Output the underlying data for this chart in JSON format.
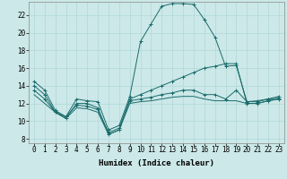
{
  "xlabel": "Humidex (Indice chaleur)",
  "ylabel": "",
  "background_color": "#cce8e8",
  "line_color": "#1a6b6b",
  "xlim": [
    -0.5,
    23.5
  ],
  "ylim": [
    7.5,
    23.5
  ],
  "yticks": [
    8,
    10,
    12,
    14,
    16,
    18,
    20,
    22
  ],
  "xticks": [
    0,
    1,
    2,
    3,
    4,
    5,
    6,
    7,
    8,
    9,
    10,
    11,
    12,
    13,
    14,
    15,
    16,
    17,
    18,
    19,
    20,
    21,
    22,
    23
  ],
  "lines": [
    {
      "x": [
        0,
        1,
        2,
        3,
        4,
        5,
        6,
        7,
        8,
        9,
        10,
        11,
        12,
        13,
        14,
        15,
        16,
        17,
        18,
        19,
        20,
        21,
        22,
        23
      ],
      "y": [
        14.5,
        13.5,
        11.2,
        10.5,
        12.5,
        12.3,
        12.2,
        9.0,
        9.5,
        12.8,
        19.0,
        21.0,
        23.0,
        23.3,
        23.3,
        23.2,
        21.5,
        19.5,
        16.2,
        16.3,
        12.2,
        12.3,
        12.5,
        12.6
      ],
      "marker": "+"
    },
    {
      "x": [
        0,
        1,
        2,
        3,
        4,
        5,
        6,
        7,
        8,
        9,
        10,
        11,
        12,
        13,
        14,
        15,
        16,
        17,
        18,
        19,
        20,
        21,
        22,
        23
      ],
      "y": [
        14.0,
        13.0,
        11.0,
        10.3,
        12.0,
        12.0,
        11.5,
        8.5,
        9.0,
        12.5,
        13.0,
        13.5,
        14.0,
        14.5,
        15.0,
        15.5,
        16.0,
        16.2,
        16.5,
        16.5,
        12.0,
        12.0,
        12.3,
        12.5
      ],
      "marker": "+"
    },
    {
      "x": [
        0,
        1,
        2,
        3,
        4,
        5,
        6,
        7,
        8,
        9,
        10,
        11,
        12,
        13,
        14,
        15,
        16,
        17,
        18,
        19,
        20,
        21,
        22,
        23
      ],
      "y": [
        13.5,
        12.5,
        11.0,
        10.5,
        11.8,
        11.7,
        11.3,
        8.7,
        9.2,
        12.3,
        12.5,
        12.7,
        13.0,
        13.2,
        13.5,
        13.5,
        13.0,
        13.0,
        12.5,
        13.5,
        12.2,
        12.2,
        12.5,
        12.8
      ],
      "marker": "+"
    },
    {
      "x": [
        0,
        1,
        2,
        3,
        4,
        5,
        6,
        7,
        8,
        9,
        10,
        11,
        12,
        13,
        14,
        15,
        16,
        17,
        18,
        19,
        20,
        21,
        22,
        23
      ],
      "y": [
        13.0,
        12.0,
        11.0,
        10.3,
        11.5,
        11.4,
        11.0,
        8.5,
        9.0,
        12.0,
        12.2,
        12.3,
        12.5,
        12.7,
        12.8,
        12.8,
        12.5,
        12.3,
        12.3,
        12.3,
        12.0,
        12.0,
        12.3,
        12.5
      ],
      "marker": null
    }
  ],
  "grid_color": "#b0d8d8",
  "label_fontsize": 6.5,
  "tick_fontsize": 5.5
}
